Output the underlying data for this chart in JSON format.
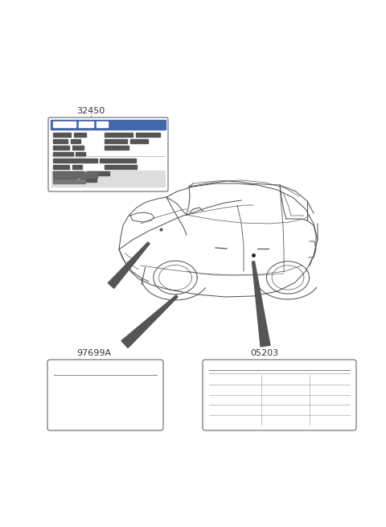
{
  "bg_color": "#ffffff",
  "label_32450": "32450",
  "label_97699A": "97699A",
  "label_05203": "05203",
  "line_color": "#666666",
  "text_color": "#333333",
  "font_size_label": 8,
  "car_color": "#555555",
  "leader_color": "#555555",
  "box_edge_color": "#666666",
  "content_color": "#777777",
  "dark_content": "#444444"
}
